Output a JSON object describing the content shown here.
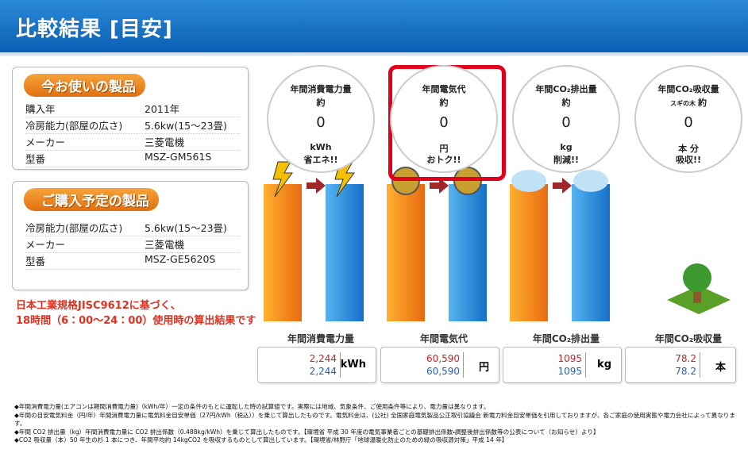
{
  "header": {
    "title": "比較結果 [目安]"
  },
  "current": {
    "label": "今お使いの製品",
    "rows": [
      [
        "購入年",
        "2011年"
      ],
      [
        "冷房能力(部屋の広さ)",
        "5.6kw(15～23畳)"
      ],
      [
        "メーカー",
        "三菱電機"
      ],
      [
        "型番",
        "MSZ-GM561S"
      ]
    ]
  },
  "planned": {
    "label": "ご購入予定の製品",
    "rows": [
      [
        "冷房能力(部屋の広さ)",
        "5.6kw(15～23畳)"
      ],
      [
        "メーカー",
        "三菱電機"
      ],
      [
        "型番",
        "MSZ-GE5620S"
      ]
    ]
  },
  "note": [
    "日本工業規格JISC9612に基づく、",
    "18時間（6：00～24：00）使用時の算出結果です"
  ],
  "circles": [
    {
      "title": "年間消費電力量",
      "approx": "約",
      "value": "0",
      "unit": "kWh",
      "tag": "省エネ!!"
    },
    {
      "title": "年間電気代",
      "approx": "約",
      "value": "0",
      "unit": "円",
      "tag": "おトク!!"
    },
    {
      "title": "年間CO₂排出量",
      "approx": "約",
      "value": "0",
      "unit": "kg",
      "tag": "削減!!"
    },
    {
      "title": "年間CO₂吸収量",
      "prefix": "スギの木",
      "approx": "約",
      "value": "0",
      "unit": "本 分",
      "tag": "吸収!!"
    }
  ],
  "results": [
    {
      "label": "年間消費電力量",
      "current": "2,244",
      "planned": "2,244",
      "unit": "kWh"
    },
    {
      "label": "年間電気代",
      "current": "60,590",
      "planned": "60,590",
      "unit": "円"
    },
    {
      "label": "年間CO₂排出量",
      "current": "1095",
      "planned": "1095",
      "unit": "kg"
    },
    {
      "label": "年間CO₂吸収量",
      "current": "78.2",
      "planned": "78.2",
      "unit": "本"
    }
  ],
  "footnotes": [
    "◆年間消費電力量(エアコンは期間消費電力量)（kWh/年）一定の条件のもとに運転した時の試算値です。実際には地域、気象条件、ご使用条件等により、電力量は異なります。",
    "◆年間の目安電気料金（円/年）年間消費電力量に電気料金目安単価（27円/kWh（税込））を乗じて算出したものです。電気料金は、(公社) 全国家庭電気製品公正取引協議会 新電力料金目安単価を引用しておりますが、各ご家庭の使用実態や電力会社によって異なります。",
    "◆年間 CO2 排出量（kg）年間消費電力量に CO2 排出係数（0.488kg/kWh）を乗じて算出したものです。【環境省 平成 30 年度の電気事業者ごとの基礎排出係数・調整後排出係数等の公表について（お知らせ）より】",
    "◆CO2 吸収量（本）50 年生の杉 1 本につき、年間平均約 14kgCO2 を吸収するものとして算出しています。【環境省/林野庁「地球温暖化防止のための緑の吸収源対策」平成 14 年】"
  ]
}
